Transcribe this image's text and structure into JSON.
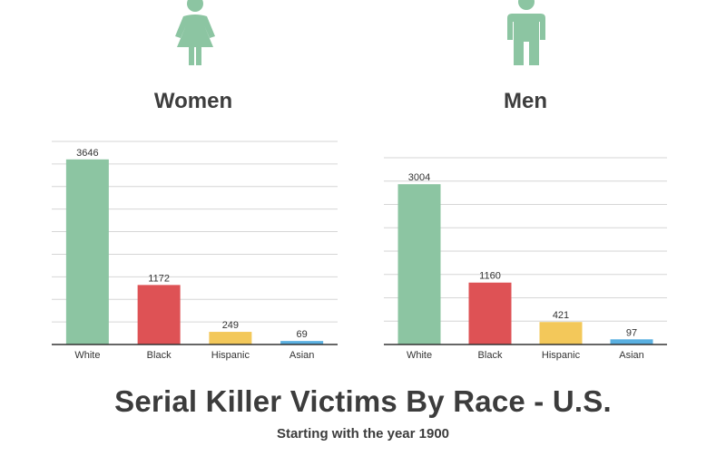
{
  "title": "Serial Killer Victims By Race - U.S.",
  "subtitle": "Starting with the year 1900",
  "colors": {
    "green": "#8cc5a2",
    "red": "#de5255",
    "yellow": "#f3c85a",
    "blue": "#5ab0e1",
    "icon": "#8cc5a2"
  },
  "panels": [
    {
      "title": "Women",
      "icon": "woman-icon"
    },
    {
      "title": "Men",
      "icon": "man-icon"
    }
  ],
  "chart_data": [
    {
      "type": "bar",
      "title": "Women",
      "categories": [
        "White",
        "Black",
        "Hispanic",
        "Asian"
      ],
      "values": [
        3646,
        1172,
        249,
        69
      ],
      "ylim": [
        0,
        4000
      ],
      "grid": true
    },
    {
      "type": "bar",
      "title": "Men",
      "categories": [
        "White",
        "Black",
        "Hispanic",
        "Asian"
      ],
      "values": [
        3004,
        1160,
        421,
        97
      ],
      "ylim": [
        0,
        3500
      ],
      "grid": true
    }
  ]
}
